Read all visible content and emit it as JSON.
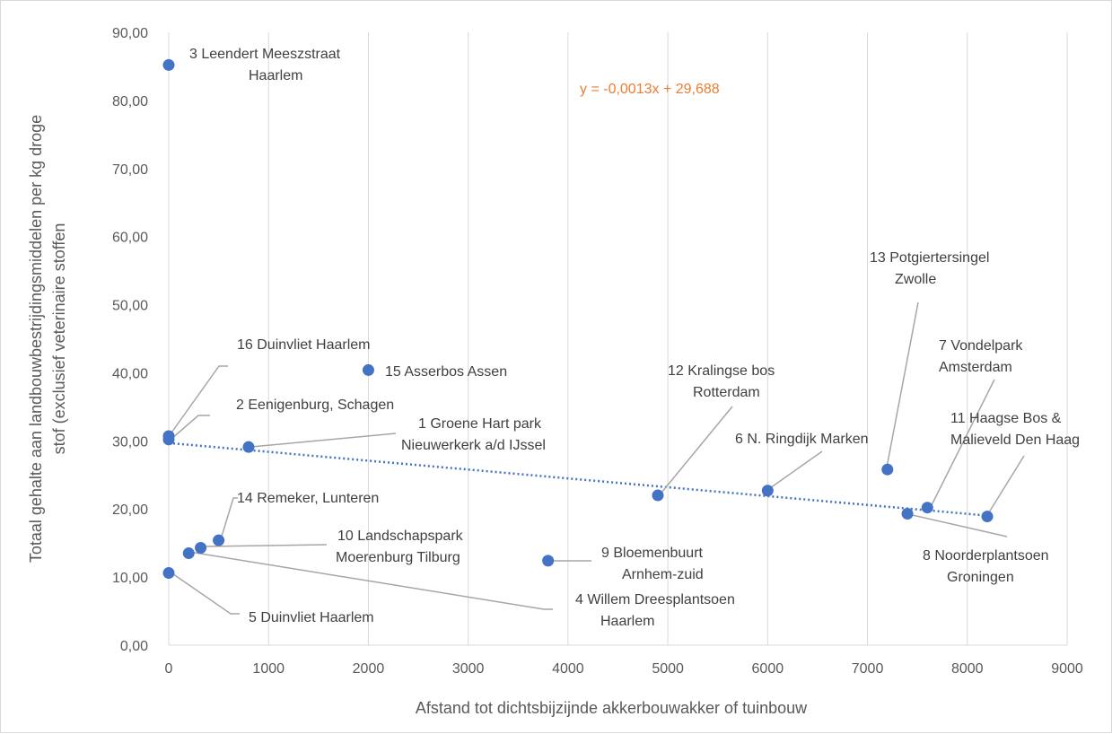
{
  "chart_data": {
    "type": "scatter",
    "title": "",
    "xlabel": "Afstand tot dichtsbijzijnde akkerbouwakker of tuinbouw",
    "ylabel": "Totaal gehalte aan landbouwbestrijdingsmiddelen per kg droge stof (exclusief veterinaire stoffen",
    "ylabel_lines": [
      "Totaal gehalte aan landbouwbestrijdingsmiddelen per kg droge",
      "stof (exclusief veterinaire stoffen"
    ],
    "xlim": [
      0,
      9000
    ],
    "ylim": [
      0,
      90
    ],
    "x_ticks": [
      0,
      1000,
      2000,
      3000,
      4000,
      5000,
      6000,
      7000,
      8000,
      9000
    ],
    "x_tick_labels": [
      "0",
      "1000",
      "2000",
      "3000",
      "4000",
      "5000",
      "6000",
      "7000",
      "8000",
      "9000"
    ],
    "y_ticks": [
      0,
      10,
      20,
      30,
      40,
      50,
      60,
      70,
      80,
      90
    ],
    "y_tick_labels": [
      "0,00",
      "10,00",
      "20,00",
      "30,00",
      "40,00",
      "50,00",
      "60,00",
      "70,00",
      "80,00",
      "90,00"
    ],
    "grid": "vertical gridlines",
    "point_color": "#4472c4",
    "trendline": {
      "slope": -0.0013,
      "intercept": 29.688,
      "label": "y = -0,0013x + 29,688",
      "color": "#4472c4",
      "label_color": "#ed7d31"
    },
    "points": [
      {
        "x": 0,
        "y": 85.2,
        "label": [
          "3 Leendert Meeszstraat",
          "Haarlem"
        ]
      },
      {
        "x": 0,
        "y": 30.7,
        "label": [
          "16 Duinvliet Haarlem"
        ]
      },
      {
        "x": 0,
        "y": 30.2,
        "label": [
          "2 Eenigenburg, Schagen"
        ]
      },
      {
        "x": 800,
        "y": 29.1,
        "label": [
          "1 Groene Hart park",
          "Nieuwerkerk a/d IJssel"
        ]
      },
      {
        "x": 2000,
        "y": 40.4,
        "label": [
          "15 Asserbos Assen"
        ]
      },
      {
        "x": 4900,
        "y": 22.0,
        "label": [
          "12 Kralingse bos",
          "Rotterdam"
        ]
      },
      {
        "x": 6000,
        "y": 22.7,
        "label": [
          "6 N. Ringdijk Marken"
        ]
      },
      {
        "x": 7200,
        "y": 25.8,
        "label": [
          "13 Potgiertersingel",
          "Zwolle"
        ]
      },
      {
        "x": 7600,
        "y": 20.2,
        "label": [
          "7 Vondelpark",
          "Amsterdam"
        ]
      },
      {
        "x": 8200,
        "y": 18.9,
        "label": [
          "11 Haagse Bos &",
          "Malieveld Den Haag"
        ]
      },
      {
        "x": 7400,
        "y": 19.3,
        "label": [
          "8 Noorderplantsoen",
          "Groningen"
        ]
      },
      {
        "x": 500,
        "y": 15.4,
        "label": [
          "14 Remeker,  Lunteren"
        ]
      },
      {
        "x": 320,
        "y": 14.3,
        "label": [
          "10 Landschapspark",
          "Moerenburg Tilburg"
        ]
      },
      {
        "x": 200,
        "y": 13.5,
        "label": [
          "4 Willem Dreesplantsoen",
          "Haarlem"
        ]
      },
      {
        "x": 3800,
        "y": 12.4,
        "label": [
          "9 Bloemenbuurt",
          "Arnhem-zuid"
        ]
      },
      {
        "x": 0,
        "y": 10.6,
        "label": [
          "5 Duinvliet Haarlem"
        ]
      }
    ]
  }
}
